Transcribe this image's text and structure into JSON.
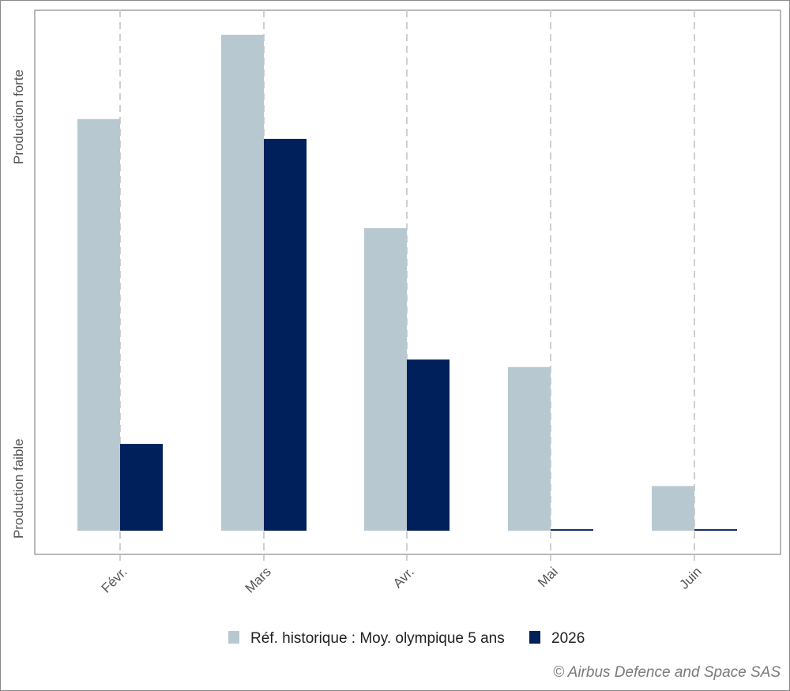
{
  "chart_data": {
    "type": "bar",
    "categories": [
      "Févr.",
      "Mars",
      "Avr.",
      "Mai",
      "Juin"
    ],
    "series": [
      {
        "name": "Réf. historique : Moy. olympique 5 ans",
        "color": "#b8c8d1",
        "values": [
          83,
          100,
          61,
          33,
          9
        ]
      },
      {
        "name": "2026",
        "color": "#00205b",
        "values": [
          17.5,
          79,
          34.5,
          0.3,
          0.3
        ]
      }
    ],
    "ylim": [
      0,
      100
    ],
    "y_tick_labels": {
      "low": "Production faible",
      "high": "Production forte"
    },
    "grid": "vertical dashed at categories",
    "legend_position": "bottom"
  },
  "credit": "© Airbus Defence and Space SAS"
}
